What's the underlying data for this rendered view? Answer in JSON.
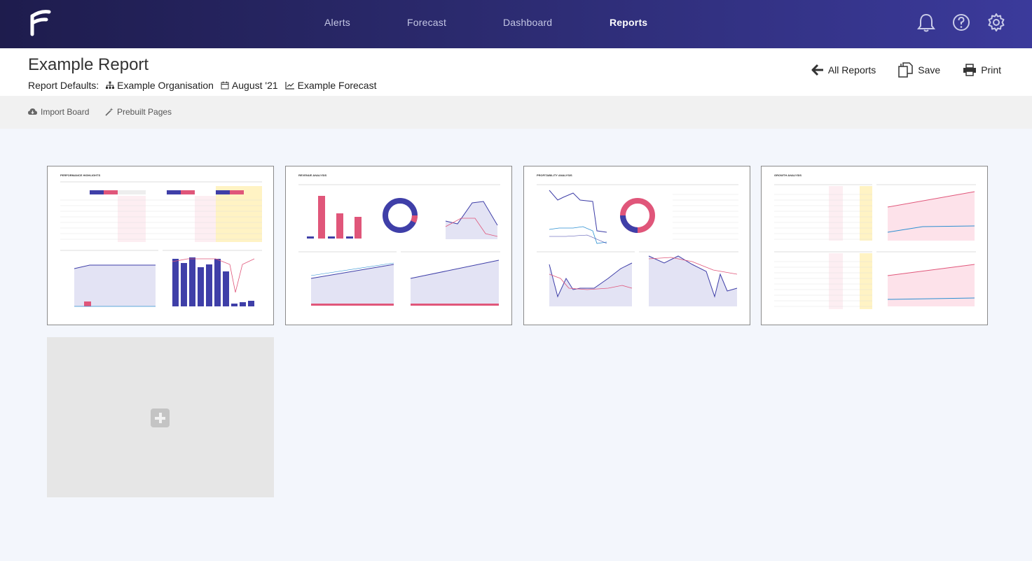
{
  "nav": {
    "items": [
      "Alerts",
      "Forecast",
      "Dashboard",
      "Reports"
    ],
    "active": "Reports",
    "icons": [
      "bell-icon",
      "help-icon",
      "gear-icon"
    ]
  },
  "header": {
    "title": "Example Report",
    "defaults_label": "Report Defaults:",
    "organisation": "Example Organisation",
    "period": "August '21",
    "forecast": "Example Forecast"
  },
  "actions": {
    "all_reports": "All Reports",
    "save": "Save",
    "print": "Print"
  },
  "toolbar": {
    "import_board": "Import Board",
    "prebuilt_pages": "Prebuilt Pages"
  },
  "pages": [
    {
      "title": "PERFORMANCE HIGHLIGHTS"
    },
    {
      "title": "REVENUE ANALYSIS"
    },
    {
      "title": "PROFITABILITY ANALYSIS"
    },
    {
      "title": "GROWTH ANALYSIS"
    }
  ],
  "colors": {
    "nav_start": "#1e1c4d",
    "nav_end": "#3b3a9b",
    "accent_blue": "#3f3fa8",
    "accent_pink": "#e0567a",
    "accent_yellow": "#fff3c4"
  }
}
